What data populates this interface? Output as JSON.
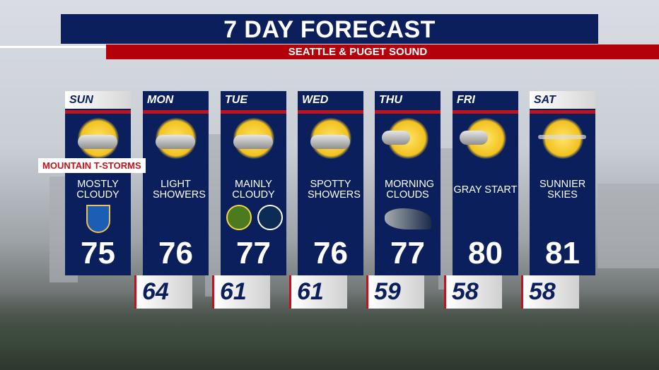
{
  "title": "7 DAY FORECAST",
  "subtitle": "SEATTLE & PUGET SOUND",
  "alert_tag": "MOUNTAIN T-STORMS",
  "colors": {
    "navy": "#0b1f5c",
    "red": "#c2121c"
  },
  "days": [
    {
      "day": "SUN",
      "condition": "MOSTLY CLOUDY",
      "high": "75",
      "low": null,
      "icon": "partly-cloudy-icon",
      "logos": [
        "ol-reign-logo"
      ]
    },
    {
      "day": "MON",
      "condition": "LIGHT SHOWERS",
      "high": "76",
      "low": "64",
      "icon": "light-showers-icon",
      "logos": []
    },
    {
      "day": "TUE",
      "condition": "MAINLY CLOUDY",
      "high": "77",
      "low": "61",
      "icon": "partly-cloudy-icon",
      "logos": [
        "seattle-storm-logo",
        "seattle-mariners-logo"
      ]
    },
    {
      "day": "WED",
      "condition": "SPOTTY SHOWERS",
      "high": "76",
      "low": "61",
      "icon": "partly-cloudy-icon",
      "logos": []
    },
    {
      "day": "THU",
      "condition": "MORNING CLOUDS",
      "high": "77",
      "low": "59",
      "icon": "mostly-sunny-icon",
      "logos": [
        "seattle-seahawks-logo"
      ]
    },
    {
      "day": "FRI",
      "condition": "GRAY START",
      "high": "80",
      "low": "58",
      "icon": "mostly-sunny-icon",
      "logos": []
    },
    {
      "day": "SAT",
      "condition": "SUNNIER SKIES",
      "high": "81",
      "low": "58",
      "icon": "sunny-icon",
      "logos": []
    }
  ]
}
